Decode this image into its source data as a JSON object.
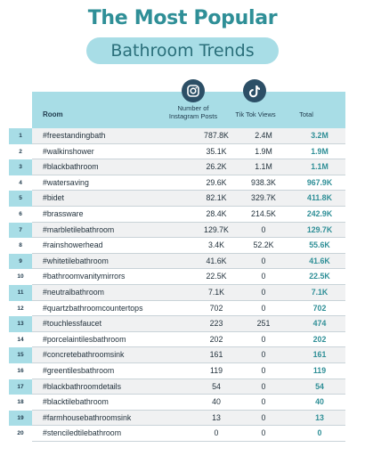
{
  "title": "The Most Popular",
  "subtitle": "Bathroom Trends",
  "headers": {
    "room": "Room",
    "instagram": "Number of Instagram Posts",
    "tiktok": "Tik Tok Views",
    "total": "Total"
  },
  "icons": {
    "instagram": "instagram-icon",
    "tiktok": "tiktok-icon"
  },
  "colors": {
    "accent": "#2f8f97",
    "band": "#a8dde6",
    "icon_bg": "#2c4f66"
  },
  "rows": [
    {
      "n": "1",
      "room": "#freestandingbath",
      "insta": "787.8K",
      "tiktok": "2.4M",
      "total": "3.2M"
    },
    {
      "n": "2",
      "room": "#walkinshower",
      "insta": "35.1K",
      "tiktok": "1.9M",
      "total": "1.9M"
    },
    {
      "n": "3",
      "room": "#blackbathroom",
      "insta": "26.2K",
      "tiktok": "1.1M",
      "total": "1.1M"
    },
    {
      "n": "4",
      "room": "#watersaving",
      "insta": "29.6K",
      "tiktok": "938.3K",
      "total": "967.9K"
    },
    {
      "n": "5",
      "room": "#bidet",
      "insta": "82.1K",
      "tiktok": "329.7K",
      "total": "411.8K"
    },
    {
      "n": "6",
      "room": "#brassware",
      "insta": "28.4K",
      "tiktok": "214.5K",
      "total": "242.9K"
    },
    {
      "n": "7",
      "room": "#marbletilebathroom",
      "insta": "129.7K",
      "tiktok": "0",
      "total": "129.7K"
    },
    {
      "n": "8",
      "room": "#rainshowerhead",
      "insta": "3.4K",
      "tiktok": "52.2K",
      "total": "55.6K"
    },
    {
      "n": "9",
      "room": "#whitetilebathroom",
      "insta": "41.6K",
      "tiktok": "0",
      "total": "41.6K"
    },
    {
      "n": "10",
      "room": "#bathroomvanitymirrors",
      "insta": "22.5K",
      "tiktok": "0",
      "total": "22.5K"
    },
    {
      "n": "11",
      "room": "#neutralbathroom",
      "insta": "7.1K",
      "tiktok": "0",
      "total": "7.1K"
    },
    {
      "n": "12",
      "room": "#quartzbathroomcountertops",
      "insta": "702",
      "tiktok": "0",
      "total": "702"
    },
    {
      "n": "13",
      "room": "#touchlessfaucet",
      "insta": "223",
      "tiktok": "251",
      "total": "474"
    },
    {
      "n": "14",
      "room": "#porcelaintilesbathroom",
      "insta": "202",
      "tiktok": "0",
      "total": "202"
    },
    {
      "n": "15",
      "room": "#concretebathroomsink",
      "insta": "161",
      "tiktok": "0",
      "total": "161"
    },
    {
      "n": "16",
      "room": "#greentilesbathroom",
      "insta": "119",
      "tiktok": "0",
      "total": "119"
    },
    {
      "n": "17",
      "room": "#blackbathroomdetails",
      "insta": "54",
      "tiktok": "0",
      "total": "54"
    },
    {
      "n": "18",
      "room": "#blacktilebathroom",
      "insta": "40",
      "tiktok": "0",
      "total": "40"
    },
    {
      "n": "19",
      "room": "#farmhousebathroomsink",
      "insta": "13",
      "tiktok": "0",
      "total": "13"
    },
    {
      "n": "20",
      "room": "#stenciledtilebathroom",
      "insta": "0",
      "tiktok": "0",
      "total": "0"
    }
  ]
}
